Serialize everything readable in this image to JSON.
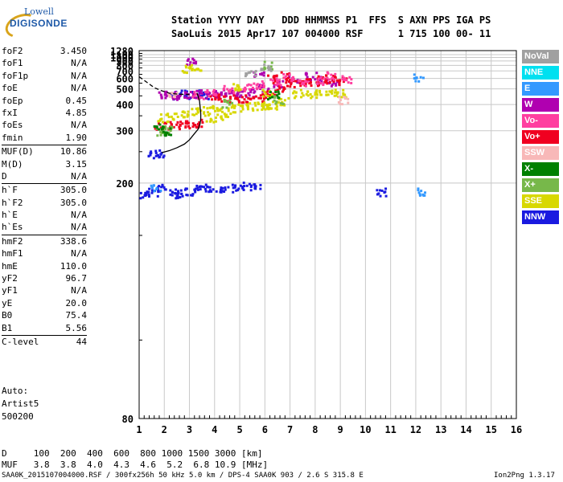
{
  "logo": {
    "line1": "Lowell",
    "line2": "DIGISONDE"
  },
  "header": {
    "line1": "Station YYYY DAY   DDD HHMMSS P1  FFS  S AXN PPS IGA PS",
    "line2": "SaoLuis 2015 Apr17 107 004000 RSF      1 715 100 00- 11"
  },
  "params": [
    [
      {
        "label": "foF2",
        "value": "3.450"
      },
      {
        "label": "foF1",
        "value": "N/A"
      },
      {
        "label": "foF1p",
        "value": "N/A"
      },
      {
        "label": "foE",
        "value": "N/A"
      },
      {
        "label": "foEp",
        "value": "0.45"
      },
      {
        "label": "fxI",
        "value": "4.85"
      },
      {
        "label": "foEs",
        "value": "N/A"
      },
      {
        "label": "fmin",
        "value": "1.90"
      }
    ],
    [
      {
        "label": "MUF(D)",
        "value": "10.86"
      },
      {
        "label": "M(D)",
        "value": "3.15"
      },
      {
        "label": "D",
        "value": "N/A"
      }
    ],
    [
      {
        "label": "h`F",
        "value": "305.0"
      },
      {
        "label": "h`F2",
        "value": "305.0"
      },
      {
        "label": "h`E",
        "value": "N/A"
      },
      {
        "label": "h`Es",
        "value": "N/A"
      }
    ],
    [
      {
        "label": "hmF2",
        "value": "338.6"
      },
      {
        "label": "hmF1",
        "value": "N/A"
      },
      {
        "label": "hmE",
        "value": "110.0"
      },
      {
        "label": "yF2",
        "value": "96.7"
      },
      {
        "label": "yF1",
        "value": "N/A"
      },
      {
        "label": "yE",
        "value": "20.0"
      },
      {
        "label": "B0",
        "value": "75.4"
      },
      {
        "label": "B1",
        "value": "5.56"
      }
    ],
    [
      {
        "label": "C-level",
        "value": "44"
      }
    ]
  ],
  "auto": {
    "line1": "Auto:",
    "line2": "Artist5",
    "line3": "500200"
  },
  "legend": [
    {
      "label": "NoVal",
      "color": "#a0a0a0"
    },
    {
      "label": "NNE",
      "color": "#00e0f0"
    },
    {
      "label": "E",
      "color": "#3399ff"
    },
    {
      "label": "W",
      "color": "#b000b0"
    },
    {
      "label": "Vo-",
      "color": "#ff3fa0"
    },
    {
      "label": "Vo+",
      "color": "#f00020"
    },
    {
      "label": "SSW",
      "color": "#f8b8b8"
    },
    {
      "label": "X-",
      "color": "#008000"
    },
    {
      "label": "X+",
      "color": "#77b84a"
    },
    {
      "label": "SSE",
      "color": "#d8d800"
    },
    {
      "label": "NNW",
      "color": "#1a1ae0"
    }
  ],
  "chart_data": {
    "type": "scatter",
    "xlim": [
      1,
      16
    ],
    "x_ticks": [
      "1",
      "2",
      "3",
      "4",
      "5",
      "6",
      "7",
      "8",
      "9",
      "10",
      "11",
      "12",
      "13",
      "14",
      "15",
      "16"
    ],
    "y_axis": "reciprocal",
    "ylim": [
      80,
      1280
    ],
    "y_ticks": [
      "80",
      "200",
      "300",
      "400",
      "500",
      "600",
      "700",
      "800",
      "900",
      "1000",
      "1100",
      "1280"
    ],
    "grid": true,
    "series": [
      {
        "name": "NNW",
        "color": "#1a1ae0",
        "points": [
          [
            1.2,
            187
          ],
          [
            1.5,
            190
          ],
          [
            1.9,
            195
          ],
          [
            2.3,
            190
          ],
          [
            2.6,
            188
          ],
          [
            3.0,
            190
          ],
          [
            3.4,
            193
          ],
          [
            3.8,
            195
          ],
          [
            4.2,
            195
          ],
          [
            4.7,
            195
          ],
          [
            5.2,
            197
          ],
          [
            5.6,
            195
          ],
          [
            10.6,
            190
          ],
          [
            1.5,
            247
          ],
          [
            1.8,
            248
          ],
          [
            2.4,
            460
          ],
          [
            2.8,
            465
          ],
          [
            3.3,
            470
          ],
          [
            3.7,
            460
          ]
        ]
      },
      {
        "name": "W",
        "color": "#b000b0",
        "points": [
          [
            1.9,
            460
          ],
          [
            2.2,
            462
          ],
          [
            2.6,
            458
          ],
          [
            3.0,
            465
          ],
          [
            3.4,
            468
          ],
          [
            3.8,
            462
          ],
          [
            4.2,
            470
          ],
          [
            4.6,
            480
          ],
          [
            5.0,
            470
          ],
          [
            5.4,
            475
          ],
          [
            5.9,
            520
          ],
          [
            6.5,
            560
          ],
          [
            7.1,
            600
          ],
          [
            7.8,
            640
          ],
          [
            8.3,
            600
          ],
          [
            8.8,
            570
          ],
          [
            5.7,
            690
          ],
          [
            3.0,
            900
          ]
        ]
      },
      {
        "name": "Vo+",
        "color": "#f00020",
        "points": [
          [
            1.8,
            315
          ],
          [
            2.2,
            318
          ],
          [
            2.6,
            320
          ],
          [
            3.0,
            322
          ],
          [
            3.4,
            325
          ],
          [
            4.0,
            440
          ],
          [
            4.4,
            430
          ],
          [
            4.9,
            440
          ],
          [
            5.3,
            435
          ],
          [
            5.8,
            445
          ],
          [
            6.2,
            470
          ],
          [
            6.6,
            510
          ],
          [
            7.0,
            560
          ],
          [
            7.5,
            560
          ],
          [
            7.9,
            575
          ],
          [
            8.3,
            590
          ],
          [
            8.6,
            610
          ],
          [
            9.0,
            575
          ],
          [
            6.3,
            600
          ],
          [
            6.8,
            640
          ]
        ]
      },
      {
        "name": "Vo-",
        "color": "#ff3fa0",
        "points": [
          [
            3.3,
            460
          ],
          [
            3.8,
            480
          ],
          [
            4.5,
            500
          ],
          [
            5.3,
            520
          ],
          [
            5.8,
            540
          ],
          [
            6.4,
            580
          ],
          [
            6.9,
            620
          ],
          [
            7.5,
            570
          ],
          [
            8.2,
            580
          ],
          [
            8.6,
            640
          ],
          [
            9.2,
            600
          ]
        ]
      },
      {
        "name": "SSE",
        "color": "#d8d800",
        "points": [
          [
            1.9,
            345
          ],
          [
            2.3,
            350
          ],
          [
            2.8,
            360
          ],
          [
            3.2,
            370
          ],
          [
            3.7,
            380
          ],
          [
            4.1,
            375
          ],
          [
            4.6,
            385
          ],
          [
            5.1,
            390
          ],
          [
            5.5,
            395
          ],
          [
            5.9,
            400
          ],
          [
            6.3,
            400
          ],
          [
            6.7,
            420
          ],
          [
            7.3,
            470
          ],
          [
            7.8,
            470
          ],
          [
            8.2,
            470
          ],
          [
            8.6,
            480
          ],
          [
            9.0,
            470
          ],
          [
            2.9,
            740
          ],
          [
            3.2,
            760
          ],
          [
            4.9,
            520
          ],
          [
            6.1,
            470
          ],
          [
            3.8,
            345
          ],
          [
            4.4,
            350
          ],
          [
            6.0,
            395
          ]
        ]
      },
      {
        "name": "X+",
        "color": "#77b84a",
        "points": [
          [
            1.8,
            300
          ],
          [
            2.1,
            305
          ],
          [
            4.5,
            410
          ],
          [
            6.5,
            430
          ],
          [
            6.1,
            820
          ]
        ]
      },
      {
        "name": "X-",
        "color": "#008000",
        "points": [
          [
            1.7,
            310
          ],
          [
            2.0,
            300
          ],
          [
            6.3,
            460
          ]
        ]
      },
      {
        "name": "E",
        "color": "#3399ff",
        "points": [
          [
            12.1,
            620
          ],
          [
            12.2,
            190
          ],
          [
            1.6,
            195
          ]
        ]
      },
      {
        "name": "NoVal",
        "color": "#a0a0a0",
        "points": [
          [
            5.4,
            700
          ],
          [
            6.0,
            760
          ]
        ]
      },
      {
        "name": "SSW",
        "color": "#f8b8b8",
        "points": [
          [
            9.1,
            430
          ],
          [
            2.3,
            470
          ]
        ]
      }
    ],
    "profile_curve": [
      [
        1.9,
        248
      ],
      [
        2.2,
        252
      ],
      [
        2.5,
        258
      ],
      [
        2.8,
        266
      ],
      [
        3.0,
        276
      ],
      [
        3.2,
        292
      ],
      [
        3.35,
        305
      ],
      [
        3.42,
        320
      ],
      [
        3.45,
        339
      ],
      [
        3.45,
        360
      ],
      [
        3.4,
        420
      ],
      [
        3.3,
        470
      ]
    ],
    "dashed_curve": [
      [
        1.0,
        620
      ],
      [
        1.3,
        560
      ],
      [
        1.6,
        510
      ],
      [
        1.9,
        485
      ],
      [
        2.2,
        468
      ],
      [
        2.6,
        460
      ],
      [
        3.0,
        460
      ]
    ]
  },
  "bottom": {
    "line1": "D     100  200  400  600  800 1000 1500 3000 [km]",
    "line2": "MUF   3.8  3.8  4.0  4.3  4.6  5.2  6.8 10.9 [MHz]"
  },
  "footer": {
    "left": "SAA0K_2015107004000.RSF / 300fx256h 50 kHz 5.0 km / DPS-4 SAA0K 903 / 2.6 S 315.8 E",
    "right": "Ion2Png 1.3.17"
  }
}
